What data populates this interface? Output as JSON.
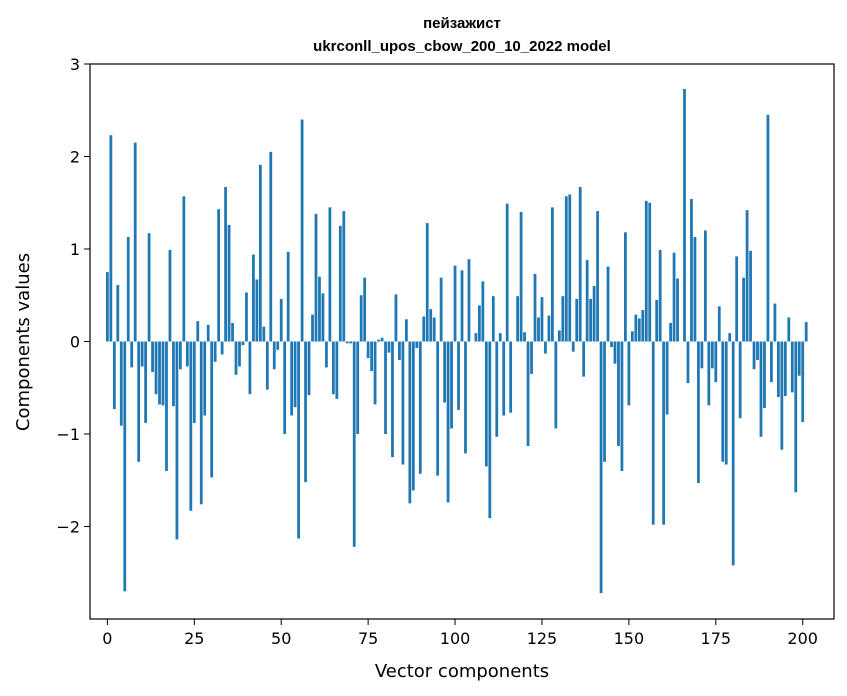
{
  "chart_data": {
    "type": "bar",
    "title": "пейзажист",
    "subtitle": "ukrconll_upos_cbow_200_10_2022 model",
    "xlabel": "Vector components",
    "ylabel": "Components values",
    "xlim": [
      -5,
      209
    ],
    "ylim": [
      -3,
      3
    ],
    "xticks": [
      0,
      25,
      50,
      75,
      100,
      125,
      150,
      175,
      200
    ],
    "xtick_labels": [
      "0",
      "25",
      "50",
      "75",
      "100",
      "125",
      "150",
      "175",
      "200"
    ],
    "yticks": [
      -2,
      -1,
      0,
      1,
      2,
      3
    ],
    "ytick_labels": [
      "−2",
      "−1",
      "0",
      "1",
      "2",
      "3"
    ],
    "grid": false,
    "color": "#1f77b4",
    "values": [
      0.75,
      2.23,
      -0.73,
      0.61,
      -0.91,
      -2.7,
      1.13,
      -0.28,
      2.15,
      -1.3,
      -0.27,
      -0.88,
      1.17,
      -0.33,
      -0.57,
      -0.68,
      -0.69,
      -1.4,
      0.99,
      -0.7,
      -2.14,
      -0.3,
      1.57,
      -0.27,
      -1.83,
      -0.88,
      0.22,
      -1.76,
      -0.8,
      0.18,
      -1.47,
      -0.22,
      1.43,
      -0.14,
      1.67,
      1.26,
      0.2,
      -0.36,
      -0.27,
      -0.04,
      0.53,
      -0.57,
      0.94,
      0.67,
      1.91,
      0.16,
      -0.52,
      2.05,
      -0.3,
      -0.09,
      0.46,
      -1.0,
      0.97,
      -0.8,
      -0.71,
      -2.13,
      2.4,
      -1.52,
      -0.58,
      0.29,
      1.38,
      0.7,
      0.52,
      -0.28,
      1.45,
      -0.57,
      -0.62,
      1.25,
      1.41,
      -0.02,
      -0.02,
      -2.22,
      -1.0,
      0.5,
      0.69,
      -0.18,
      -0.32,
      -0.68,
      0.02,
      0.04,
      -1.0,
      -0.12,
      -1.25,
      0.51,
      -0.2,
      -1.33,
      0.24,
      -1.75,
      -1.61,
      -0.07,
      -1.43,
      0.27,
      1.28,
      0.35,
      0.26,
      -1.45,
      0.69,
      -0.66,
      -1.74,
      -0.94,
      0.82,
      -0.74,
      0.77,
      -1.21,
      0.89,
      0.0,
      0.09,
      0.39,
      0.65,
      -1.35,
      -1.91,
      0.49,
      -1.03,
      0.09,
      -0.8,
      1.49,
      -0.77,
      0.0,
      0.49,
      1.4,
      0.1,
      -1.13,
      -0.35,
      0.73,
      0.26,
      0.48,
      -0.13,
      0.28,
      1.45,
      -0.94,
      0.12,
      0.49,
      1.57,
      1.59,
      -0.11,
      0.46,
      1.67,
      -0.38,
      0.88,
      0.46,
      0.6,
      1.41,
      -2.72,
      -1.3,
      0.81,
      -0.06,
      -0.24,
      -1.13,
      -1.4,
      1.18,
      -0.69,
      0.11,
      0.29,
      0.25,
      0.34,
      1.52,
      1.5,
      -1.98,
      0.45,
      0.99,
      -1.98,
      -0.79,
      0.2,
      0.96,
      0.68,
      0.0,
      2.73,
      -0.45,
      1.54,
      1.13,
      -1.53,
      -0.29,
      1.2,
      -0.69,
      -0.29,
      -0.44,
      0.38,
      -1.3,
      -1.33,
      0.09,
      -2.42,
      0.92,
      -0.83,
      0.69,
      1.42,
      0.98,
      -0.3,
      -0.2,
      -1.03,
      -0.72,
      2.45,
      -0.44,
      0.41,
      -0.6,
      -1.17,
      -0.59,
      0.26,
      -0.55,
      -1.63,
      -0.37,
      -0.87,
      0.21
    ]
  }
}
